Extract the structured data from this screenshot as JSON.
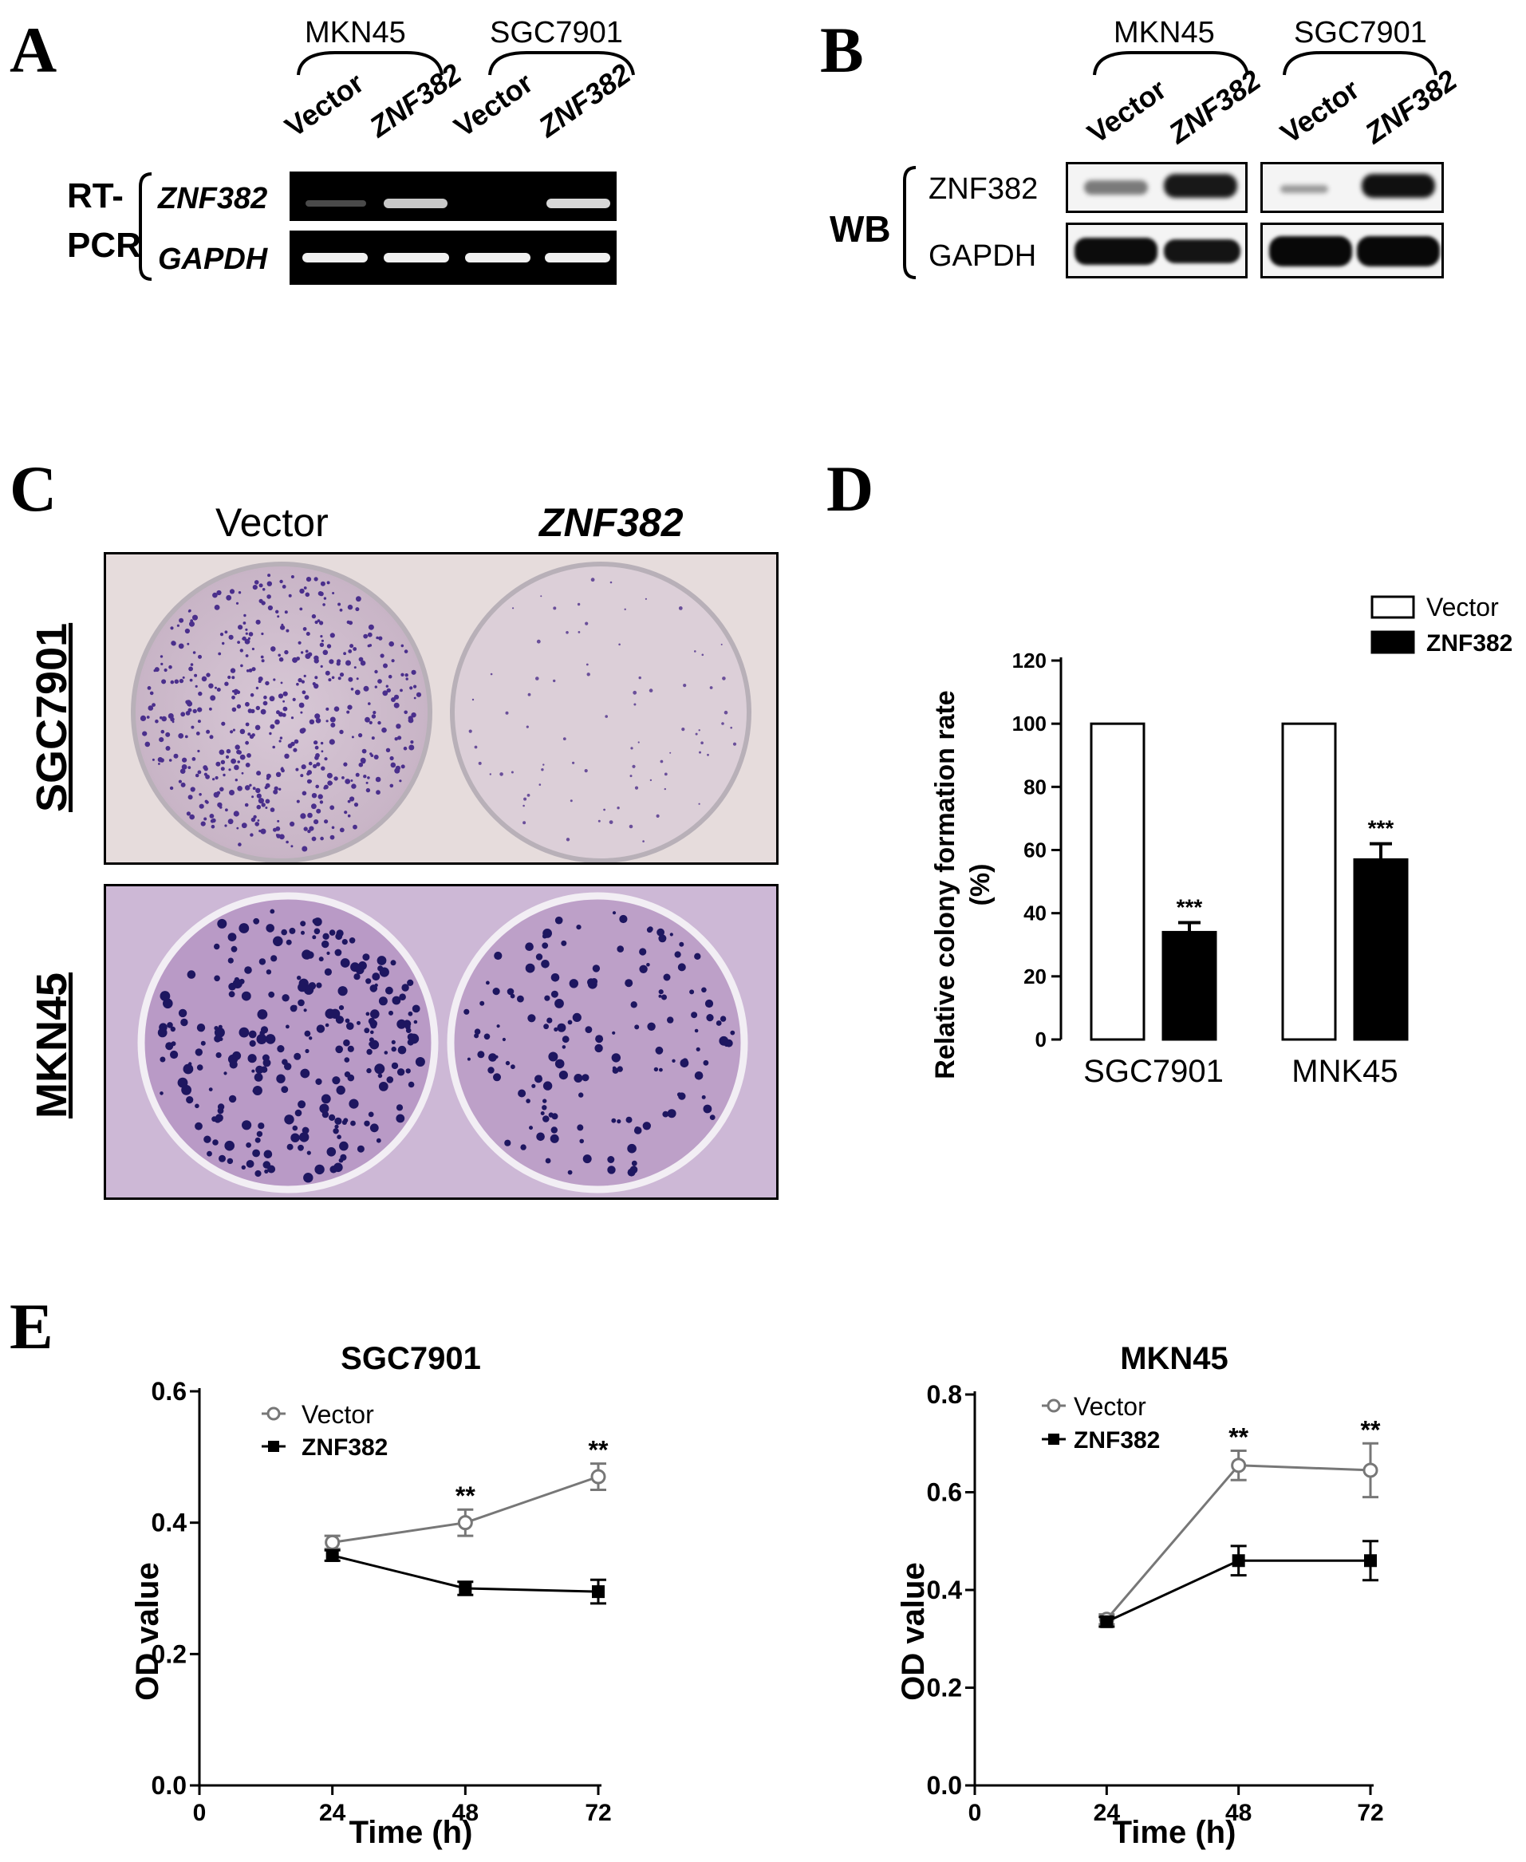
{
  "panels": {
    "A": "A",
    "B": "B",
    "C": "C",
    "D": "D",
    "E": "E"
  },
  "panelA": {
    "cell_lines": [
      "MKN45",
      "SGC7901"
    ],
    "lanes": [
      "Vector",
      "ZNF382",
      "Vector",
      "ZNF382"
    ],
    "method": [
      "RT-",
      "PCR"
    ],
    "rows": [
      "ZNF382",
      "GAPDH"
    ]
  },
  "panelB": {
    "cell_lines": [
      "MKN45",
      "SGC7901"
    ],
    "lanes": [
      "Vector",
      "ZNF382",
      "Vector",
      "ZNF382"
    ],
    "method": "WB",
    "rows": [
      "ZNF382",
      "GAPDH"
    ]
  },
  "panelC": {
    "columns": [
      "Vector",
      "ZNF382"
    ],
    "rows": [
      "SGC7901",
      "MKN45"
    ]
  },
  "chart_data": [
    {
      "id": "D",
      "type": "bar",
      "categories": [
        "SGC7901",
        "MNK45"
      ],
      "series": [
        {
          "name": "Vector",
          "values": [
            100,
            100
          ],
          "errors": [
            0,
            0
          ],
          "color": "#ffffff"
        },
        {
          "name": "ZNF382",
          "values": [
            34,
            57
          ],
          "errors": [
            3,
            5
          ],
          "color": "#000000"
        }
      ],
      "significance": [
        "***",
        "***"
      ],
      "ylabel": "Relative colony formation rate (%)",
      "ylabel_lines": [
        "Relative colony formation rate",
        "(%)"
      ],
      "ylim": [
        0,
        120
      ],
      "yticks": [
        "0",
        "20",
        "40",
        "60",
        "80",
        "100",
        "120"
      ],
      "legend": "top-right"
    },
    {
      "id": "E1",
      "type": "line",
      "title": "SGC7901",
      "x": [
        24,
        48,
        72
      ],
      "series": [
        {
          "name": "Vector",
          "values": [
            0.37,
            0.4,
            0.47
          ],
          "errors": [
            0.01,
            0.02,
            0.02
          ],
          "marker": "open-circle",
          "color": "#777777"
        },
        {
          "name": "ZNF382",
          "values": [
            0.35,
            0.3,
            0.295
          ],
          "errors": [
            0.008,
            0.01,
            0.018
          ],
          "marker": "filled-square",
          "color": "#000000"
        }
      ],
      "significance": {
        "x": [
          48,
          72
        ],
        "labels": [
          "**",
          "**"
        ]
      },
      "xlabel": "Time (h)",
      "ylabel": "OD value",
      "xlim": [
        0,
        72
      ],
      "ylim": [
        0,
        0.6
      ],
      "xticks": [
        "0",
        "24",
        "48",
        "72"
      ],
      "yticks": [
        "0.0",
        "0.2",
        "0.4",
        "0.6"
      ],
      "legend": "top-left"
    },
    {
      "id": "E2",
      "type": "line",
      "title": "MKN45",
      "x": [
        24,
        48,
        72
      ],
      "series": [
        {
          "name": "Vector",
          "values": [
            0.34,
            0.655,
            0.645
          ],
          "errors": [
            0.01,
            0.03,
            0.055
          ],
          "marker": "open-circle",
          "color": "#777777"
        },
        {
          "name": "ZNF382",
          "values": [
            0.335,
            0.46,
            0.46
          ],
          "errors": [
            0.01,
            0.03,
            0.04
          ],
          "marker": "filled-square",
          "color": "#000000"
        }
      ],
      "significance": {
        "x": [
          48,
          72
        ],
        "labels": [
          "**",
          "**"
        ]
      },
      "xlabel": "Time (h)",
      "ylabel": "OD value",
      "xlim": [
        0,
        72
      ],
      "ylim": [
        0,
        0.8
      ],
      "xticks": [
        "0",
        "24",
        "48",
        "72"
      ],
      "yticks": [
        "0.0",
        "0.2",
        "0.4",
        "0.6",
        "0.8"
      ],
      "legend": "top-left"
    }
  ]
}
